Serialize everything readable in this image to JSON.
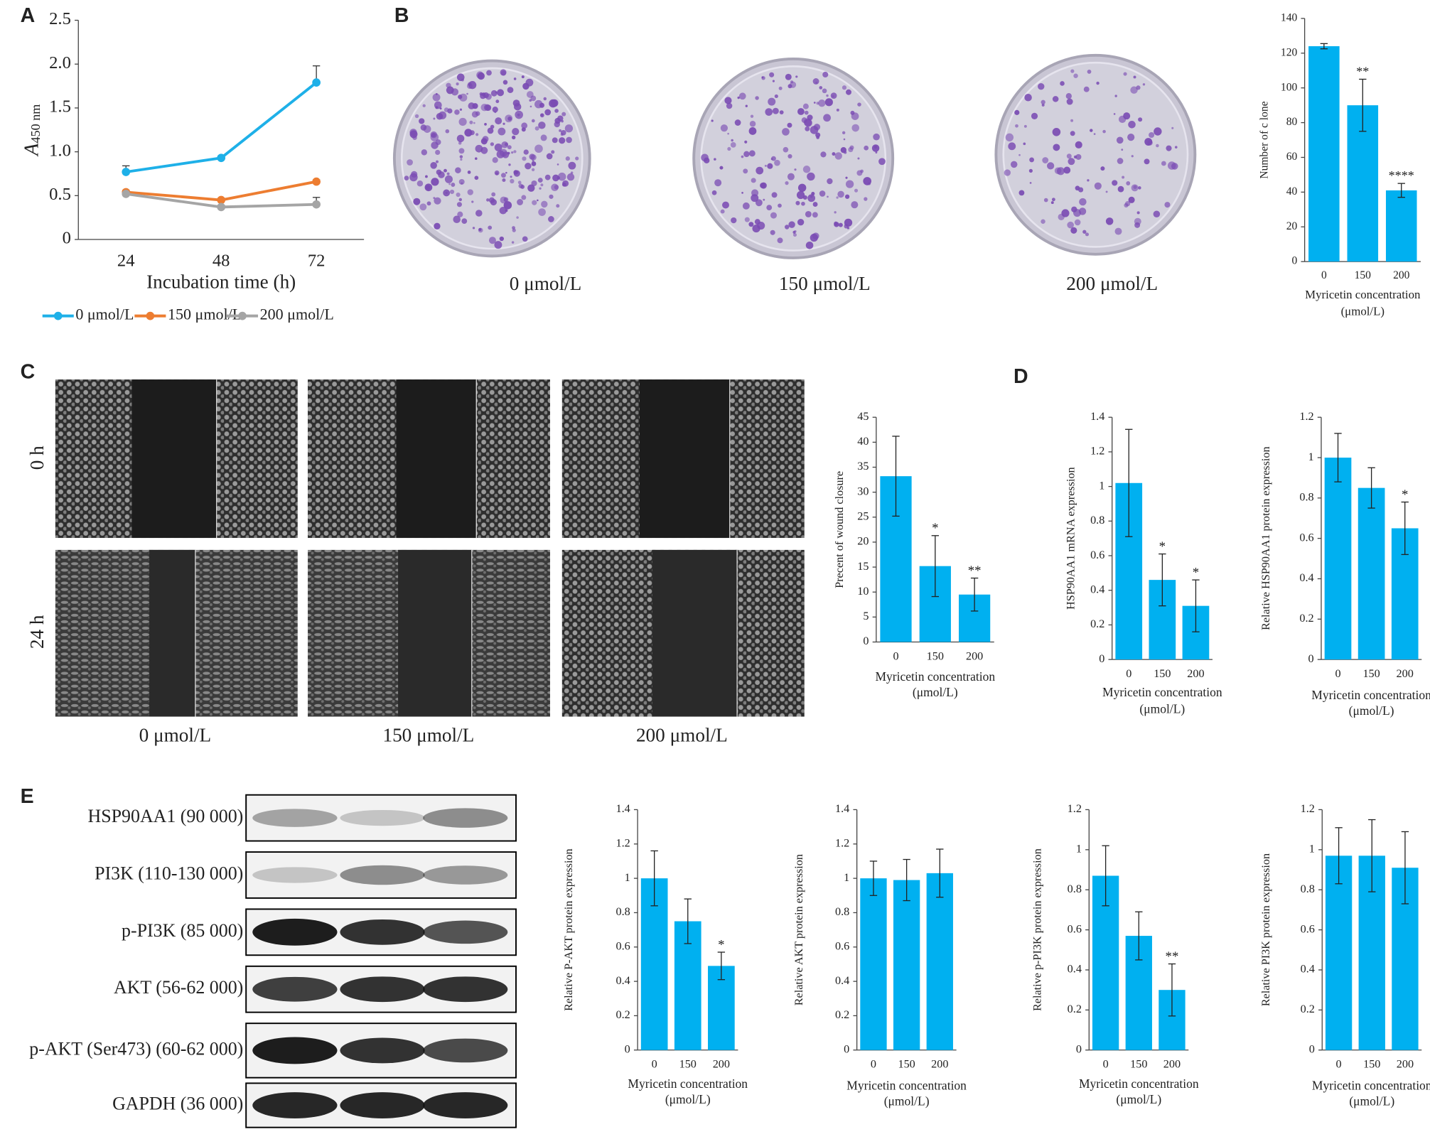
{
  "panel_labels": [
    "A",
    "B",
    "C",
    "D",
    "E"
  ],
  "plates": {
    "labels": [
      "0 μmol/L",
      "150 μmol/L",
      "200 μmol/L"
    ]
  },
  "wound": {
    "rows": [
      "0 h",
      "24 h"
    ],
    "columns": [
      "0 μmol/L",
      "150 μmol/L",
      "200 μmol/L"
    ]
  },
  "blot": {
    "labels": [
      "HSP90AA1 (90 000)",
      "PI3K (110-130 000)",
      "p-PI3K (85 000)",
      "AKT (56-62 000)",
      "p-AKT (Ser473) (60-62 000)",
      "GAPDH (36 000)"
    ]
  },
  "chart_data": [
    {
      "type": "line",
      "y_label": "A",
      "y_label_sub": "450 nm",
      "x_label": "Incubation time (h)",
      "categories": [
        "24",
        "48",
        "72"
      ],
      "ylim": [
        0,
        2.5
      ],
      "yticks": [
        0,
        0.5,
        {
          "value": 1,
          "label": "1.0"
        },
        1.5,
        {
          "value": 2,
          "label": "2.0"
        },
        2.5
      ],
      "legend": "bottom",
      "series": [
        {
          "name": "0 μmol/L",
          "color": "#1eb0e8",
          "values": [
            0.77,
            0.93,
            1.79
          ],
          "errors": [
            0.07,
            0.02,
            0.19
          ]
        },
        {
          "name": "150 μmol/L",
          "color": "#ed7d31",
          "values": [
            0.54,
            0.45,
            0.66
          ],
          "errors": [
            0.02,
            0.02,
            0.02
          ]
        },
        {
          "name": "200 μmol/L",
          "color": "#a5a5a5",
          "values": [
            0.52,
            0.37,
            0.4
          ],
          "errors": [
            0.02,
            0.02,
            0.08
          ]
        }
      ]
    },
    {
      "type": "bar",
      "y_label": "Number of c lone",
      "x_label": [
        "Myricetin concentration",
        "(μmol/L)"
      ],
      "categories": [
        "0",
        "150",
        "200"
      ],
      "values": [
        124,
        90,
        41
      ],
      "errors": [
        1.5,
        15,
        4
      ],
      "sig": [
        null,
        "**",
        "****"
      ],
      "color": "#00b0f0",
      "ylim": [
        0,
        140
      ],
      "yticks": [
        0,
        20,
        40,
        60,
        80,
        100,
        120,
        140
      ]
    },
    {
      "type": "bar",
      "y_label": "Precent of wound closure",
      "x_label": [
        "Myricetin concentration",
        "(μmol/L)"
      ],
      "categories": [
        "0",
        "150",
        "200"
      ],
      "values": [
        33.2,
        15.2,
        9.5
      ],
      "errors": [
        8,
        6.1,
        3.3
      ],
      "sig": [
        null,
        "*",
        "**"
      ],
      "color": "#00b0f0",
      "ylim": [
        0,
        45
      ],
      "yticks": [
        0,
        5,
        10,
        15,
        20,
        25,
        30,
        35,
        40,
        45
      ]
    },
    {
      "type": "bar",
      "y_label": "HSP90AA1 mRNA expression",
      "x_label": [
        "Myricetin concentration",
        "(μmol/L)"
      ],
      "categories": [
        "0",
        "150",
        "200"
      ],
      "values": [
        1.02,
        0.46,
        0.31
      ],
      "errors": [
        0.31,
        0.15,
        0.15
      ],
      "sig": [
        null,
        "*",
        "*"
      ],
      "color": "#00b0f0",
      "ylim": [
        0,
        1.4
      ],
      "yticks": [
        0,
        0.2,
        0.4,
        0.6,
        0.8,
        1,
        1.2,
        1.4
      ]
    },
    {
      "type": "bar",
      "y_label": "Relative HSP90AA1 protein expression",
      "x_label": [
        "Myricetin concentration",
        "(μmol/L)"
      ],
      "categories": [
        "0",
        "150",
        "200"
      ],
      "values": [
        1.0,
        0.85,
        0.65
      ],
      "errors": [
        0.12,
        0.1,
        0.13
      ],
      "sig": [
        null,
        null,
        "*"
      ],
      "color": "#00b0f0",
      "ylim": [
        0,
        1.2
      ],
      "yticks": [
        0,
        0.2,
        0.4,
        0.6,
        0.8,
        1,
        1.2
      ]
    },
    {
      "type": "bar",
      "y_label": "Relative P-AKT protein expression",
      "x_label": [
        "Myricetin concentration",
        "(μmol/L)"
      ],
      "categories": [
        "0",
        "150",
        "200"
      ],
      "values": [
        1.0,
        0.75,
        0.49
      ],
      "errors": [
        0.16,
        0.13,
        0.08
      ],
      "sig": [
        null,
        null,
        "*"
      ],
      "color": "#00b0f0",
      "ylim": [
        0,
        1.4
      ],
      "yticks": [
        0,
        0.2,
        0.4,
        0.6,
        0.8,
        1,
        1.2,
        1.4
      ]
    },
    {
      "type": "bar",
      "y_label": "Relative AKT protein expression",
      "x_label": [
        "Myricetin concentration",
        "(μmol/L)"
      ],
      "categories": [
        "0",
        "150",
        "200"
      ],
      "values": [
        1.0,
        0.99,
        1.03
      ],
      "errors": [
        0.1,
        0.12,
        0.14
      ],
      "sig": [
        null,
        null,
        null
      ],
      "color": "#00b0f0",
      "ylim": [
        0,
        1.4
      ],
      "yticks": [
        0,
        0.2,
        0.4,
        0.6,
        0.8,
        1,
        1.2,
        1.4
      ]
    },
    {
      "type": "bar",
      "y_label": "Relative p-PI3K protein expression",
      "x_label": [
        "Myricetin concentration",
        "(μmol/L)"
      ],
      "categories": [
        "0",
        "150",
        "200"
      ],
      "values": [
        0.87,
        0.57,
        0.3
      ],
      "errors": [
        0.15,
        0.12,
        0.13
      ],
      "sig": [
        null,
        null,
        "**"
      ],
      "color": "#00b0f0",
      "ylim": [
        0,
        1.2
      ],
      "yticks": [
        0,
        0.2,
        0.4,
        0.6,
        0.8,
        1,
        1.2
      ]
    },
    {
      "type": "bar",
      "y_label": "Relative PI3K protein expression",
      "x_label": [
        "Myricetin concentration",
        "(μmol/L)"
      ],
      "categories": [
        "0",
        "150",
        "200"
      ],
      "values": [
        0.97,
        0.97,
        0.91
      ],
      "errors": [
        0.14,
        0.18,
        0.18
      ],
      "sig": [
        null,
        null,
        null
      ],
      "color": "#00b0f0",
      "ylim": [
        0,
        1.2
      ],
      "yticks": [
        0,
        0.2,
        0.4,
        0.6,
        0.8,
        1,
        1.2
      ]
    }
  ]
}
